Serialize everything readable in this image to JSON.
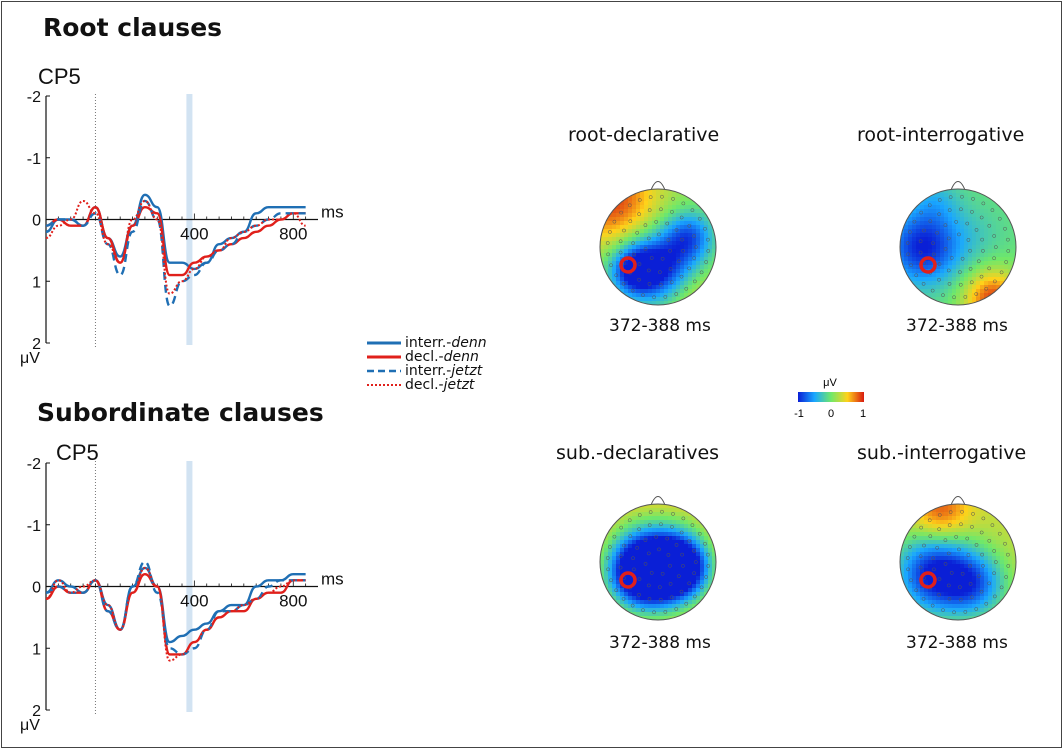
{
  "headings": {
    "root": "Root clauses",
    "sub": "Subordinate clauses"
  },
  "axis": {
    "electrode": "CP5",
    "x_unit": "ms",
    "y_unit": "μV",
    "x_ticks": [
      "400",
      "800"
    ],
    "y_ticks": [
      "-2",
      "-1",
      "0",
      "1",
      "2"
    ]
  },
  "legend": [
    {
      "prefix": "interr.-",
      "word": "denn",
      "color": "#1f6fb4",
      "style": "solid"
    },
    {
      "prefix": "decl.-",
      "word": "denn",
      "color": "#e0201b",
      "style": "solid"
    },
    {
      "prefix": "interr.-",
      "word": "jetzt",
      "color": "#1f6fb4",
      "style": "dashed"
    },
    {
      "prefix": "decl.-",
      "word": "jetzt",
      "color": "#e0201b",
      "style": "dotted"
    }
  ],
  "topomaps": [
    {
      "title": "root-declarative",
      "time": "372-388 ms"
    },
    {
      "title": "root-interrogative",
      "time": "372-388 ms"
    },
    {
      "title": "sub.-declaratives",
      "time": "372-388 ms"
    },
    {
      "title": "sub.-interrogative",
      "time": "372-388 ms"
    }
  ],
  "colorbar": {
    "unit": "μV",
    "min": "-1",
    "mid": "0",
    "max": "1"
  },
  "chart_data": [
    {
      "type": "line",
      "title": "Root clauses",
      "subtitle": "CP5",
      "xlabel": "ms",
      "ylabel": "μV",
      "xlim": [
        -200,
        900
      ],
      "ylim": [
        -2,
        2
      ],
      "y_inverted": true,
      "highlight_ms": 380,
      "x": [
        -200,
        -150,
        -100,
        -50,
        0,
        50,
        100,
        150,
        200,
        250,
        300,
        350,
        400,
        450,
        500,
        550,
        600,
        650,
        700,
        750,
        800,
        850
      ],
      "series": [
        {
          "name": "interr.-denn",
          "color": "#1f6fb4",
          "dash": "solid",
          "values": [
            0.2,
            0.0,
            0.0,
            0.1,
            -0.2,
            0.3,
            0.6,
            0.1,
            -0.4,
            -0.2,
            0.7,
            0.7,
            0.8,
            0.7,
            0.4,
            0.3,
            0.2,
            -0.1,
            -0.2,
            -0.2,
            -0.2,
            -0.2
          ]
        },
        {
          "name": "decl.-denn",
          "color": "#e0201b",
          "dash": "solid",
          "values": [
            0.1,
            0.0,
            0.1,
            0.1,
            -0.2,
            0.3,
            0.7,
            0.1,
            -0.2,
            -0.1,
            0.9,
            0.9,
            0.7,
            0.6,
            0.5,
            0.4,
            0.3,
            0.2,
            0.1,
            0.0,
            -0.1,
            -0.1
          ]
        },
        {
          "name": "interr.-jetzt",
          "color": "#1f6fb4",
          "dash": "dashed",
          "values": [
            0.1,
            0.0,
            0.0,
            0.1,
            -0.1,
            0.4,
            0.9,
            0.2,
            -0.3,
            0.0,
            1.4,
            1.0,
            0.9,
            0.7,
            0.5,
            0.4,
            0.2,
            0.1,
            0.0,
            -0.1,
            -0.1,
            -0.1
          ]
        },
        {
          "name": "decl.-jetzt",
          "color": "#e0201b",
          "dash": "dotted",
          "values": [
            0.3,
            0.1,
            0.0,
            -0.3,
            -0.1,
            0.4,
            0.7,
            0.0,
            -0.3,
            0.0,
            1.2,
            1.0,
            0.8,
            0.6,
            0.5,
            0.3,
            0.2,
            0.1,
            0.0,
            0.0,
            -0.1,
            0.1
          ]
        }
      ]
    },
    {
      "type": "line",
      "title": "Subordinate clauses",
      "subtitle": "CP5",
      "xlabel": "ms",
      "ylabel": "μV",
      "xlim": [
        -200,
        900
      ],
      "ylim": [
        -2,
        2
      ],
      "y_inverted": true,
      "highlight_ms": 380,
      "x": [
        -200,
        -150,
        -100,
        -50,
        0,
        50,
        100,
        150,
        200,
        250,
        300,
        350,
        400,
        450,
        500,
        550,
        600,
        650,
        700,
        750,
        800,
        850
      ],
      "series": [
        {
          "name": "interr.-denn",
          "color": "#1f6fb4",
          "dash": "solid",
          "values": [
            0.1,
            -0.1,
            0.0,
            0.1,
            -0.1,
            0.3,
            0.7,
            0.0,
            -0.3,
            0.0,
            0.9,
            0.8,
            0.7,
            0.6,
            0.4,
            0.3,
            0.3,
            0.0,
            -0.1,
            -0.1,
            -0.2,
            -0.2
          ]
        },
        {
          "name": "decl.-denn",
          "color": "#e0201b",
          "dash": "solid",
          "values": [
            0.2,
            0.0,
            0.1,
            0.1,
            -0.1,
            0.4,
            0.7,
            0.1,
            -0.2,
            0.0,
            1.1,
            1.1,
            0.9,
            0.7,
            0.5,
            0.4,
            0.4,
            0.2,
            0.1,
            0.1,
            -0.1,
            -0.1
          ]
        },
        {
          "name": "interr.-jetzt",
          "color": "#1f6fb4",
          "dash": "dashed",
          "values": [
            0.1,
            0.0,
            0.1,
            0.1,
            -0.1,
            0.4,
            0.7,
            0.0,
            -0.4,
            0.1,
            1.0,
            1.1,
            1.0,
            0.7,
            0.4,
            0.4,
            0.3,
            0.2,
            0.0,
            -0.1,
            -0.1,
            -0.1
          ]
        },
        {
          "name": "decl.-jetzt",
          "color": "#e0201b",
          "dash": "dotted",
          "values": [
            0.2,
            -0.1,
            0.1,
            0.0,
            -0.1,
            0.3,
            0.7,
            0.1,
            -0.3,
            0.0,
            1.2,
            1.1,
            0.9,
            0.7,
            0.5,
            0.4,
            0.3,
            0.2,
            0.1,
            0.0,
            -0.1,
            -0.1
          ]
        }
      ]
    }
  ]
}
